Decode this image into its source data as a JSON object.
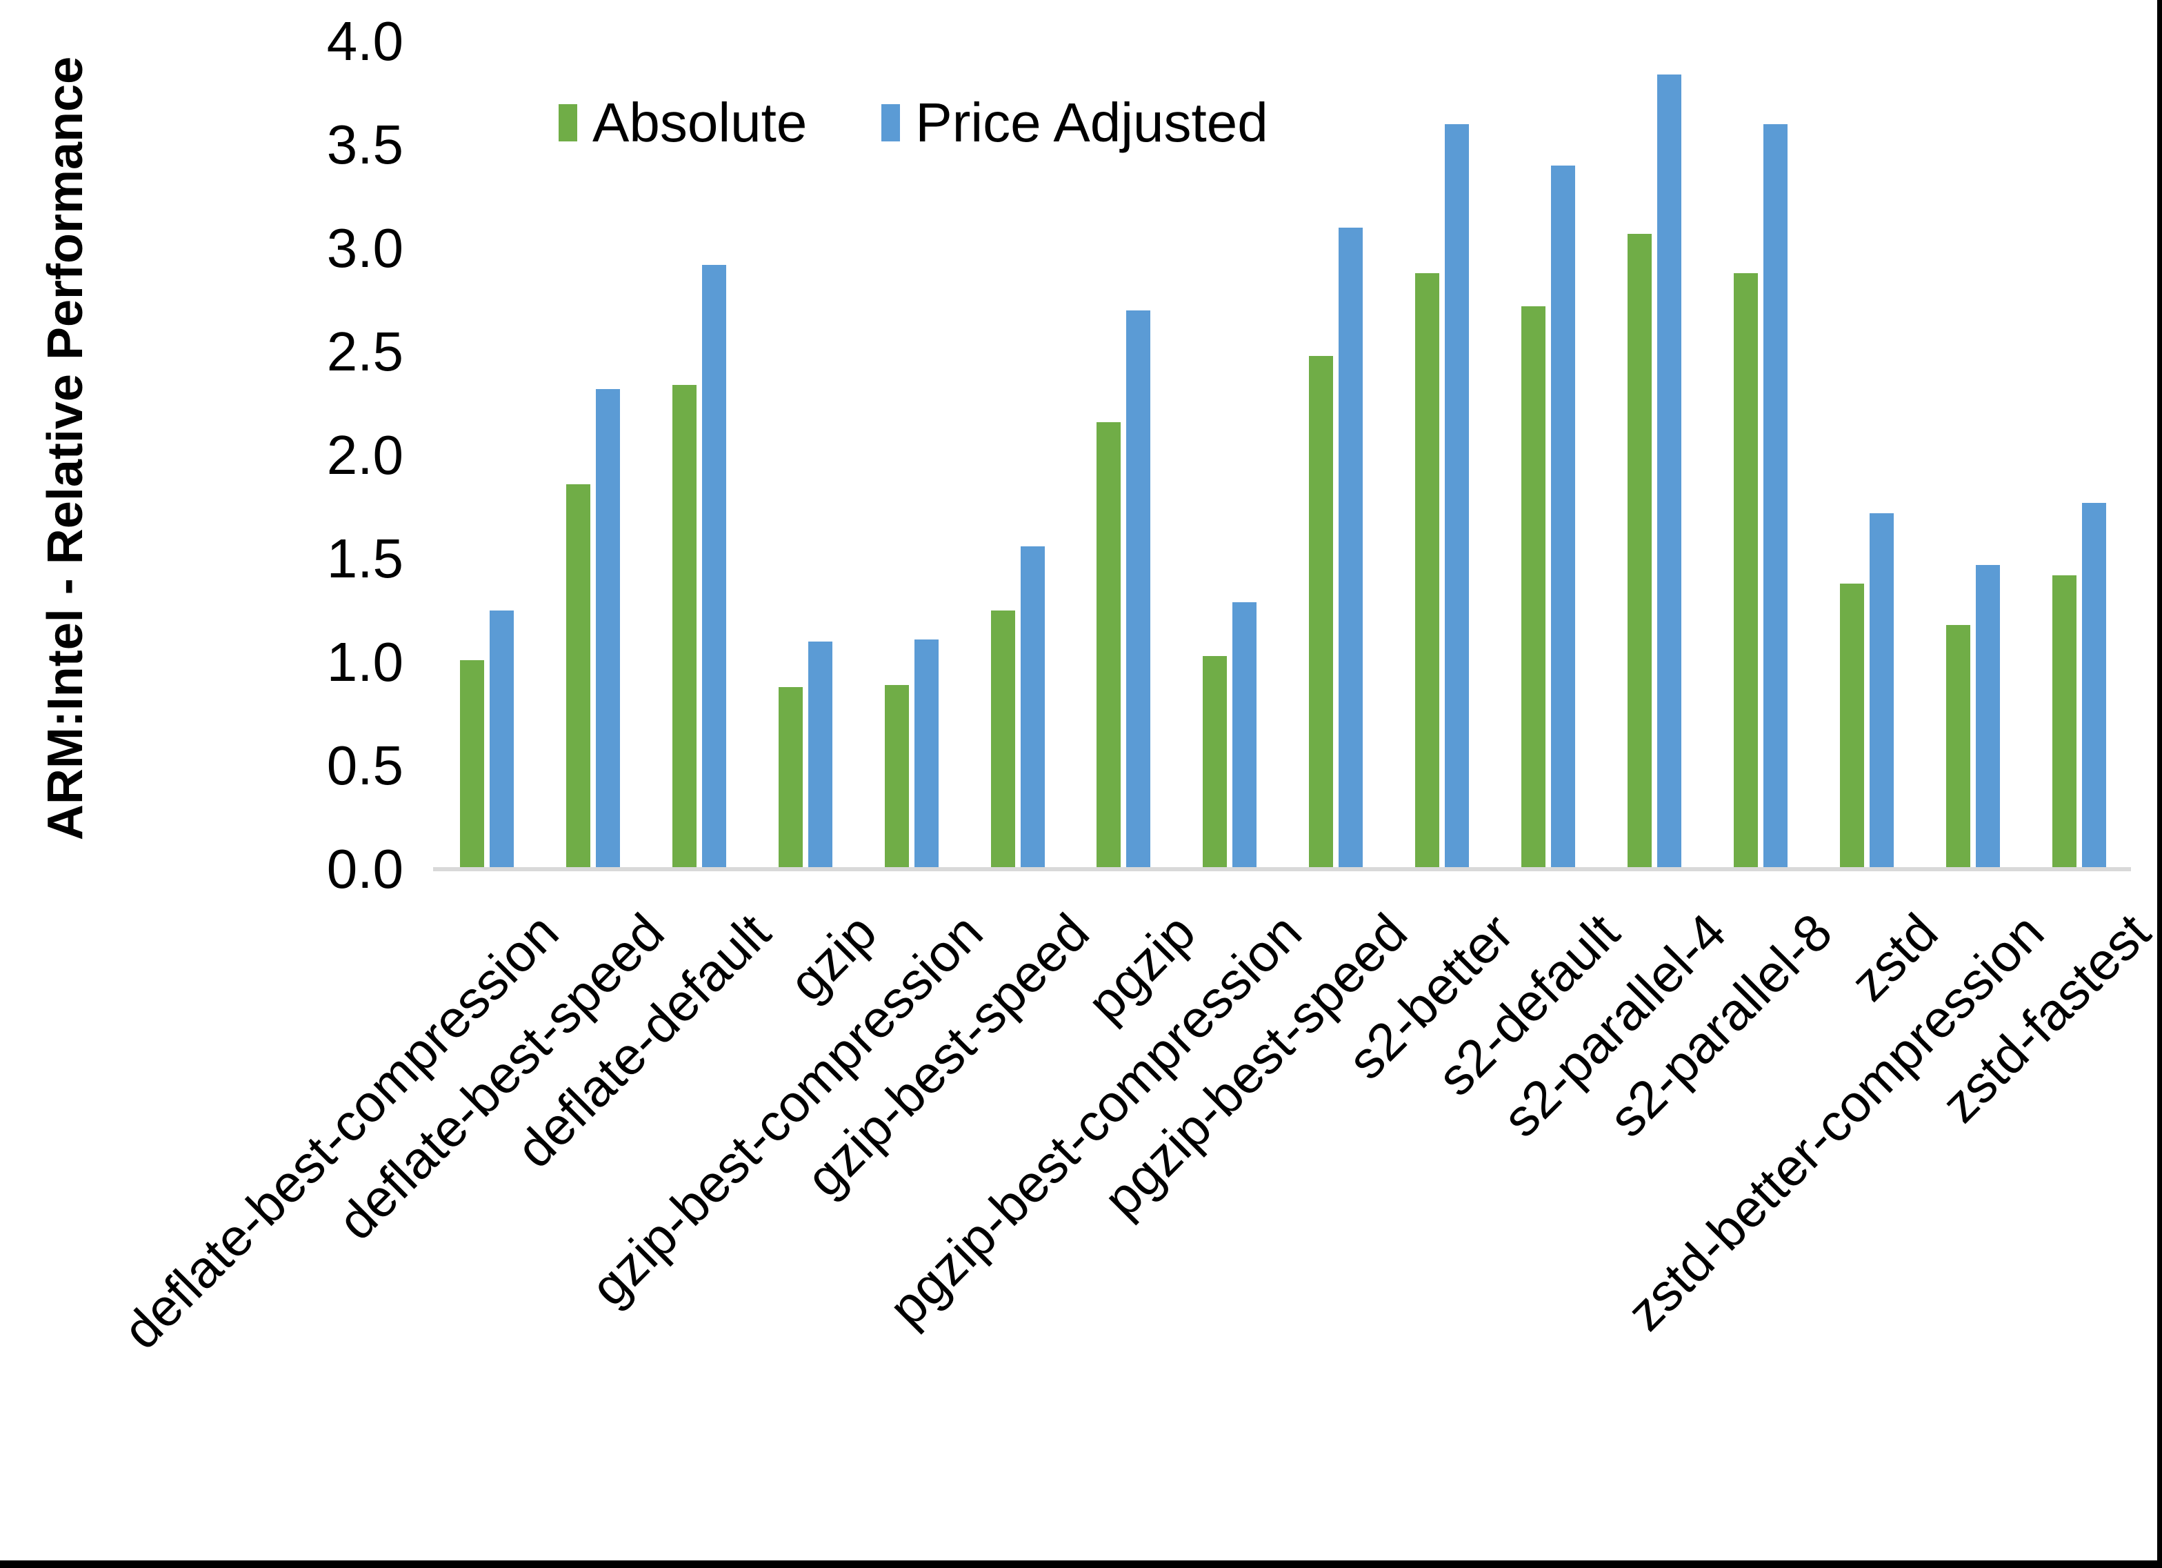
{
  "chart_data": {
    "type": "bar",
    "title": "",
    "xlabel": "",
    "ylabel": "ARM:Intel - Relative Performance",
    "ylim": [
      0.0,
      4.0
    ],
    "ytick_step": 0.5,
    "ytick_labels": [
      "0.0",
      "0.5",
      "1.0",
      "1.5",
      "2.0",
      "2.5",
      "3.0",
      "3.5",
      "4.0"
    ],
    "grid": false,
    "legend_position": "top-center",
    "categories": [
      "deflate-best-compression",
      "deflate-best-speed",
      "deflate-default",
      "gzip",
      "gzip-best-compression",
      "gzip-best-speed",
      "pgzip",
      "pgzip-best-compression",
      "pgzip-best-speed",
      "s2-better",
      "s2-default",
      "s2-parallel-4",
      "s2-parallel-8",
      "zstd",
      "zstd-better-compression",
      "zstd-fastest"
    ],
    "series": [
      {
        "name": "Absolute",
        "color": "#70AD47",
        "values": [
          1.0,
          1.85,
          2.33,
          0.87,
          0.88,
          1.24,
          2.15,
          1.02,
          2.47,
          2.87,
          2.71,
          3.06,
          2.87,
          1.37,
          1.17,
          1.41
        ]
      },
      {
        "name": "Price Adjusted",
        "color": "#5B9BD5",
        "values": [
          1.24,
          2.31,
          2.91,
          1.09,
          1.1,
          1.55,
          2.69,
          1.28,
          3.09,
          3.59,
          3.39,
          3.83,
          3.59,
          1.71,
          1.46,
          1.76
        ]
      }
    ],
    "colors": {
      "axis_line": "#D9D9D9",
      "text": "#000000",
      "frame_border": "#000000",
      "background": "#FFFFFF"
    }
  }
}
